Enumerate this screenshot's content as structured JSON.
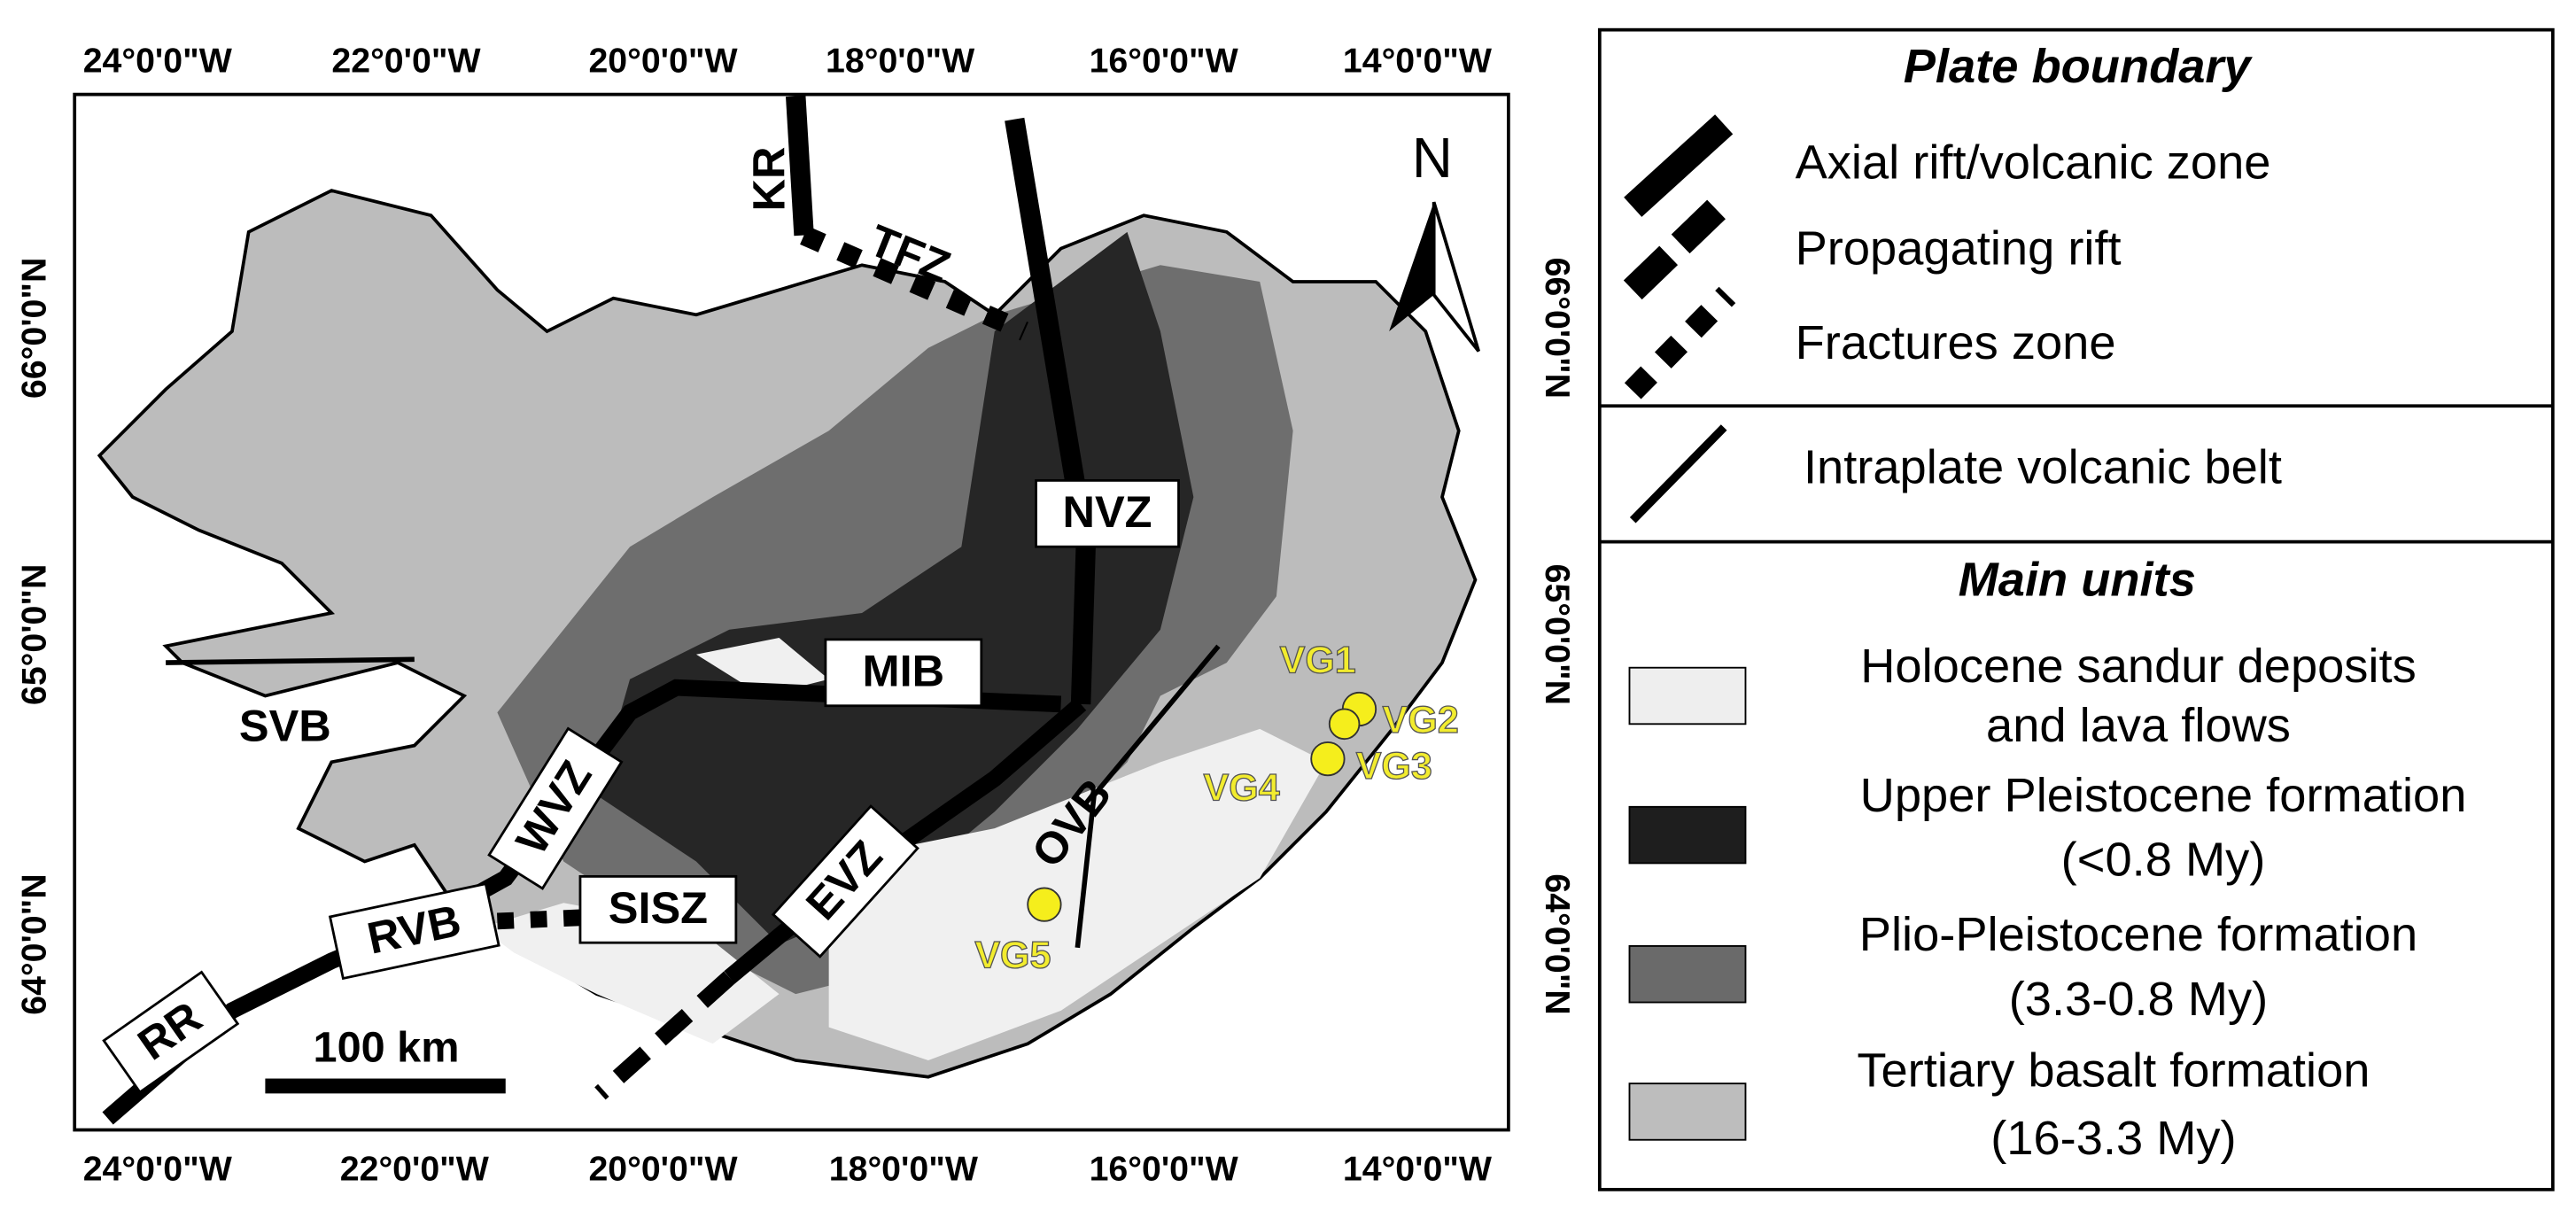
{
  "map": {
    "lon_ticks": [
      "24°0'0\"W",
      "22°0'0\"W",
      "20°0'0\"W",
      "18°0'0\"W",
      "16°0'0\"W",
      "14°0'0\"W"
    ],
    "lat_ticks": [
      "66°0'0\"N",
      "65°0'0\"N",
      "64°0'0\"N"
    ],
    "north": "N",
    "labels": {
      "kr": "KR",
      "tfz": "TFZ",
      "nvz": "NVZ",
      "mib": "MIB",
      "svb": "SVB",
      "wvz": "WVZ",
      "sisz": "SISZ",
      "rvb": "RVB",
      "rr": "RR",
      "evz": "EVZ",
      "ovb": "OVB"
    },
    "sites": [
      "VG1",
      "VG2",
      "VG3",
      "VG4",
      "VG5"
    ],
    "scale_bar": "100 km"
  },
  "legend": {
    "plate_boundary": {
      "title": "Plate boundary",
      "items": [
        "Axial rift/volcanic zone",
        "Propagating rift",
        "Fractures zone"
      ]
    },
    "intraplate": "Intraplate volcanic belt",
    "main_units": {
      "title": "Main units",
      "items": [
        [
          "Holocene sandur deposits",
          "and lava flows"
        ],
        [
          "Upper Pleistocene formation",
          "(<0.8 My)"
        ],
        [
          "Plio-Pleistocene formation",
          "(3.3-0.8 My)"
        ],
        [
          "Tertiary basalt formation",
          "(16-3.3 My)"
        ]
      ]
    }
  }
}
